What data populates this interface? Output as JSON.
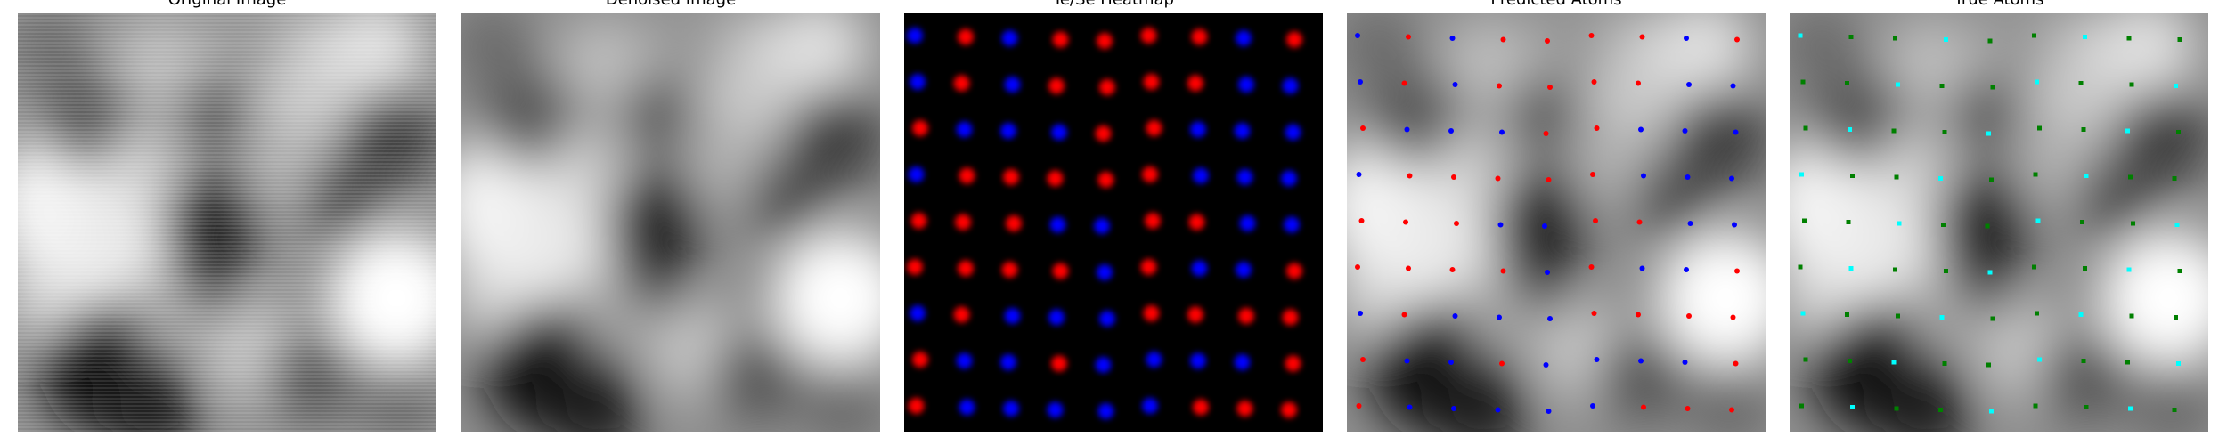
{
  "figure": {
    "panels": [
      {
        "id": "original",
        "title": "Original Image"
      },
      {
        "id": "denoised",
        "title": "Denoised Image"
      },
      {
        "id": "heatmap",
        "title": "Te/Se Heatmap"
      },
      {
        "id": "predicted",
        "title": "Predicted Atoms"
      },
      {
        "id": "true",
        "title": "True Atoms"
      }
    ]
  },
  "colors": {
    "te": "#ff0000",
    "se": "#0000ff",
    "true_a": "#00ffff",
    "true_b": "#008000",
    "heatmap_bg": "#000000"
  },
  "atom_grid": {
    "rows": [
      "BRBRRRRBR",
      "BRBRRRRBB",
      "RBBBRRBBB",
      "BRRRRRBBB",
      "RRRBBRRBB",
      "RRRRBRBBR",
      "BRBBBRRRR",
      "RBBRBBBBR",
      "RBBBBBRRR"
    ]
  }
}
